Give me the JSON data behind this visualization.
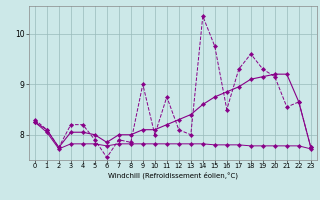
{
  "xlabel": "Windchill (Refroidissement éolien,°C)",
  "background_color": "#cce8e8",
  "line_color": "#880088",
  "grid_color": "#99bbbb",
  "x_ticks": [
    0,
    1,
    2,
    3,
    4,
    5,
    6,
    7,
    8,
    9,
    10,
    11,
    12,
    13,
    14,
    15,
    16,
    17,
    18,
    19,
    20,
    21,
    22,
    23
  ],
  "y_ticks": [
    8,
    9,
    10
  ],
  "ylim": [
    7.5,
    10.55
  ],
  "xlim": [
    -0.5,
    23.5
  ],
  "line1_x": [
    0,
    1,
    2,
    3,
    4,
    5,
    6,
    7,
    8,
    9,
    10,
    11,
    12,
    13,
    14,
    15,
    16,
    17,
    18,
    19,
    20,
    21,
    22,
    23
  ],
  "line1_y": [
    8.3,
    8.1,
    7.75,
    8.2,
    8.2,
    7.9,
    7.55,
    7.9,
    7.85,
    9.0,
    8.0,
    8.75,
    8.1,
    8.0,
    10.35,
    9.75,
    8.5,
    9.3,
    9.6,
    9.3,
    9.15,
    8.55,
    8.65,
    7.75
  ],
  "line2_x": [
    0,
    1,
    2,
    3,
    4,
    5,
    6,
    7,
    8,
    9,
    10,
    11,
    12,
    13,
    14,
    15,
    16,
    17,
    18,
    19,
    20,
    21,
    22,
    23
  ],
  "line2_y": [
    8.25,
    8.1,
    7.75,
    8.05,
    8.05,
    8.0,
    7.85,
    8.0,
    8.0,
    8.1,
    8.1,
    8.2,
    8.3,
    8.4,
    8.6,
    8.75,
    8.85,
    8.95,
    9.1,
    9.15,
    9.2,
    9.2,
    8.65,
    7.75
  ],
  "line3_x": [
    0,
    1,
    2,
    3,
    4,
    5,
    6,
    7,
    8,
    9,
    10,
    11,
    12,
    13,
    14,
    15,
    16,
    17,
    18,
    19,
    20,
    21,
    22,
    23
  ],
  "line3_y": [
    8.25,
    8.05,
    7.72,
    7.82,
    7.82,
    7.82,
    7.78,
    7.82,
    7.82,
    7.82,
    7.82,
    7.82,
    7.82,
    7.82,
    7.82,
    7.8,
    7.8,
    7.8,
    7.78,
    7.78,
    7.78,
    7.78,
    7.78,
    7.72
  ]
}
